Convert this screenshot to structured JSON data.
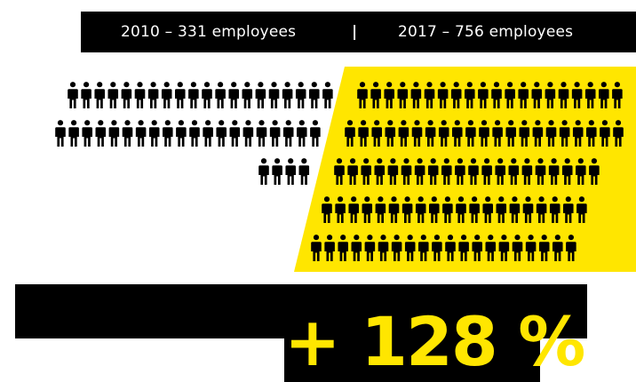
{
  "header": {
    "left_text": "2010 – 331 employees",
    "separator": "|",
    "right_text": "2017 – 756 employees"
  },
  "growth": {
    "value_text": "+ 128 %",
    "percent": 128
  },
  "colors": {
    "background": "#ffffff",
    "bar": "#000000",
    "accent": "#ffe600",
    "text_light": "#ffffff",
    "figure": "#000000"
  },
  "icons": {
    "person": "person-icon"
  }
}
